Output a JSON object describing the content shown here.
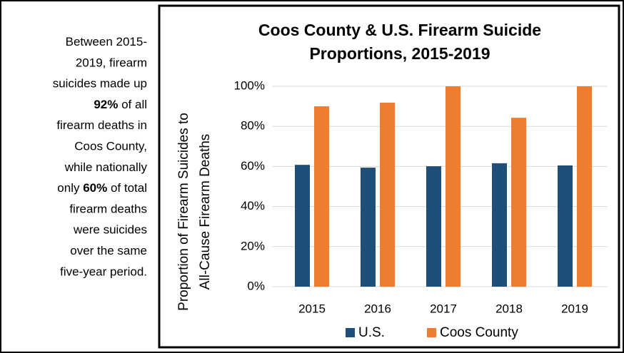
{
  "note_lines": [
    [
      {
        "text": "Between 2015-"
      }
    ],
    [
      {
        "text": "2019, firearm"
      }
    ],
    [
      {
        "text": "suicides made up"
      }
    ],
    [
      {
        "text": "92%",
        "bold": true
      },
      {
        "text": " of all"
      }
    ],
    [
      {
        "text": "firearm deaths in"
      }
    ],
    [
      {
        "text": "Coos County,"
      }
    ],
    [
      {
        "text": "while nationally"
      }
    ],
    [
      {
        "text": "only "
      },
      {
        "text": "60%",
        "bold": true
      },
      {
        "text": " of total"
      }
    ],
    [
      {
        "text": "firearm deaths"
      }
    ],
    [
      {
        "text": "were suicides"
      }
    ],
    [
      {
        "text": "over the same"
      }
    ],
    [
      {
        "text": "five-year period."
      }
    ]
  ],
  "chart_data": {
    "type": "bar",
    "title": [
      "Coos County & U.S. Firearm Suicide",
      "Proportions, 2015-2019"
    ],
    "y_label": [
      "Proportion of Firearm Suicides to",
      "All-Cause Firearm Deaths"
    ],
    "categories": [
      "2015",
      "2016",
      "2017",
      "2018",
      "2019"
    ],
    "series": [
      {
        "name": "U.S.",
        "color": "#1f4e79",
        "values": [
          60.8,
          59.4,
          60.1,
          61.6,
          60.5
        ]
      },
      {
        "name": "Coos County",
        "color": "#ed7d31",
        "values": [
          90.0,
          91.8,
          100,
          84.3,
          100
        ]
      }
    ],
    "ylim": [
      0,
      100
    ],
    "yticks": [
      {
        "value": 0,
        "label": "0%"
      },
      {
        "value": 20,
        "label": "20%"
      },
      {
        "value": 40,
        "label": "40%"
      },
      {
        "value": 60,
        "label": "60%"
      },
      {
        "value": 80,
        "label": "80%"
      },
      {
        "value": 100,
        "label": "100%"
      }
    ],
    "grid": true,
    "legend": "bottom"
  }
}
